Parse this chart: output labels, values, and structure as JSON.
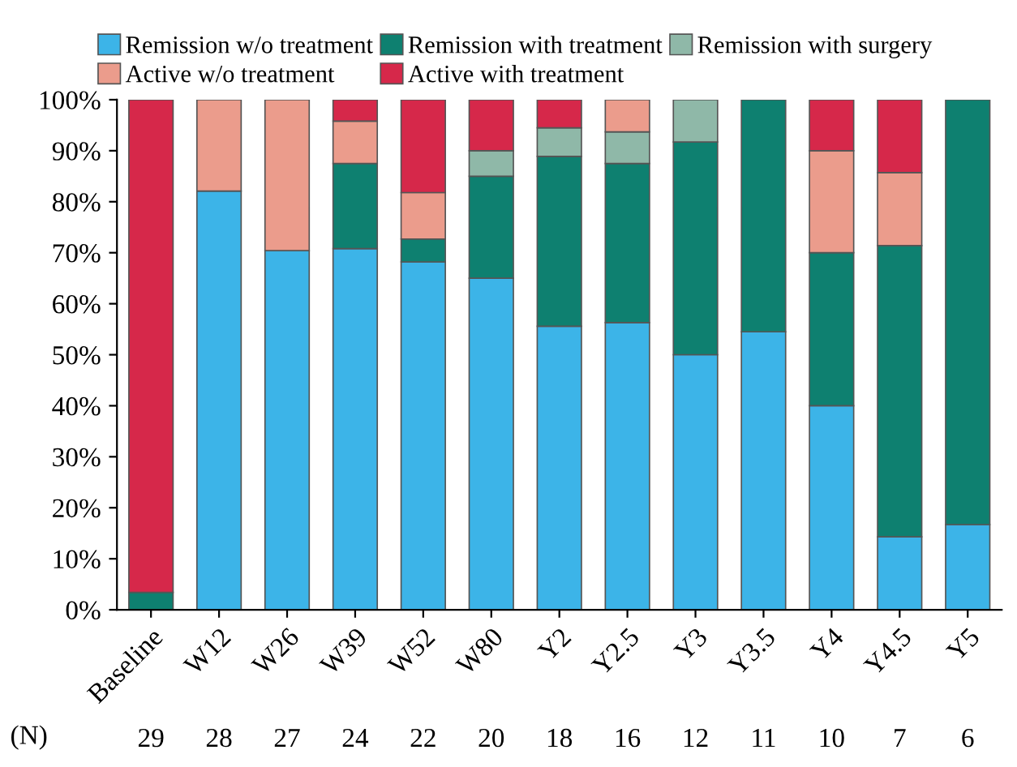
{
  "chart_data": {
    "type": "bar",
    "stacked": true,
    "categories": [
      "Baseline",
      "W12",
      "W26",
      "W39",
      "W52",
      "W80",
      "Y2",
      "Y2.5",
      "Y3",
      "Y3.5",
      "Y4",
      "Y4.5",
      "Y5"
    ],
    "series": [
      {
        "name": "Remission w/o treatment",
        "color": "#3cb4e8",
        "values": [
          0,
          82.1,
          70.4,
          70.8,
          68.2,
          65,
          55.6,
          56.3,
          50,
          54.5,
          40,
          14.3,
          16.7
        ]
      },
      {
        "name": "Remission with treatment",
        "color": "#0e8070",
        "values": [
          3.4,
          0,
          0,
          16.7,
          4.5,
          20,
          33.3,
          31.2,
          41.7,
          45.5,
          30,
          57.1,
          83.3
        ]
      },
      {
        "name": "Remission with surgery",
        "color": "#8fb8a8",
        "values": [
          0,
          0,
          0,
          0,
          0,
          5,
          5.6,
          6.2,
          8.3,
          0,
          0,
          0,
          0
        ]
      },
      {
        "name": "Active w/o treatment",
        "color": "#eb9c8c",
        "values": [
          0,
          17.9,
          29.6,
          8.3,
          9.1,
          0,
          0,
          6.3,
          0,
          0,
          20,
          14.3,
          0
        ]
      },
      {
        "name": "Active with treatment",
        "color": "#d6284a",
        "values": [
          96.6,
          0,
          0,
          4.2,
          18.2,
          10,
          5.5,
          0,
          0,
          0,
          10,
          14.3,
          0
        ]
      }
    ],
    "ylim": [
      0,
      100
    ],
    "yticks": [
      {
        "value": 0,
        "label": "0%"
      },
      {
        "value": 10,
        "label": "10%"
      },
      {
        "value": 20,
        "label": "20%"
      },
      {
        "value": 30,
        "label": "30%"
      },
      {
        "value": 40,
        "label": "40%"
      },
      {
        "value": 50,
        "label": "50%"
      },
      {
        "value": 60,
        "label": "60%"
      },
      {
        "value": 70,
        "label": "70%"
      },
      {
        "value": 80,
        "label": "80%"
      },
      {
        "value": 90,
        "label": "90%"
      },
      {
        "value": 100,
        "label": "100%"
      }
    ],
    "legend": "top",
    "grid": false,
    "annotations": [
      "(N)",
      "29",
      "28",
      "27",
      "24",
      "22",
      "20",
      "18",
      "16",
      "12",
      "11",
      "10",
      "7",
      "6"
    ]
  }
}
